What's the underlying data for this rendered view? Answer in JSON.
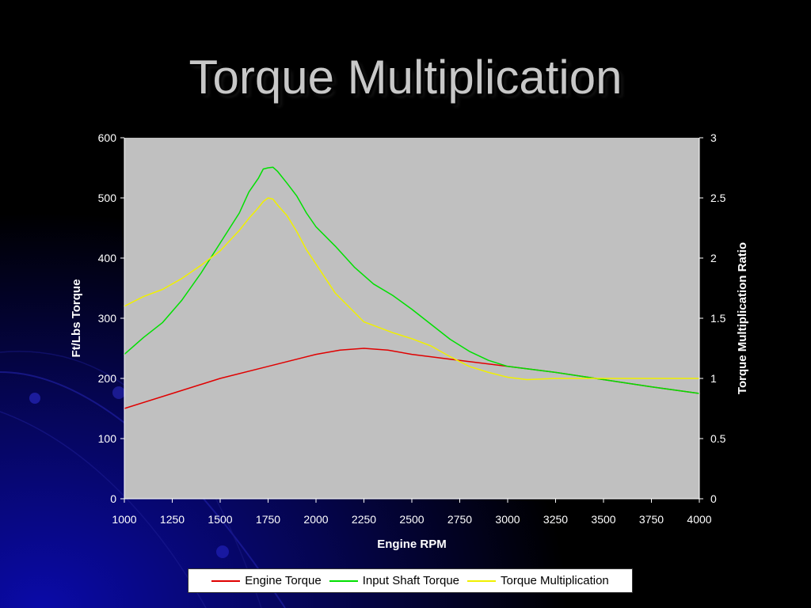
{
  "slide": {
    "title": "Torque Multiplication"
  },
  "chart_data": {
    "type": "line",
    "title": "",
    "xlabel": "Engine RPM",
    "ylabel": "Ft/Lbs Torque",
    "y2label": "Torque Multiplication Ratio",
    "xlim": [
      1000,
      4000
    ],
    "ylim": [
      0,
      600
    ],
    "y2lim": [
      0,
      3
    ],
    "x_ticks": [
      "1000",
      "1250",
      "1500",
      "1750",
      "2000",
      "2250",
      "2500",
      "2750",
      "3000",
      "3250",
      "3500",
      "3750",
      "4000"
    ],
    "y_ticks": [
      "0",
      "100",
      "200",
      "300",
      "400",
      "500",
      "600"
    ],
    "y2_ticks": [
      "0",
      "0.5",
      "1",
      "1.5",
      "2",
      "2.5",
      "3"
    ],
    "plot_background": "#c0c0c0",
    "grid": false,
    "legend_position": "bottom",
    "series": [
      {
        "name": "Engine Torque",
        "color": "#e00000",
        "axis": "left",
        "x": [
          1000,
          1250,
          1500,
          1750,
          2000,
          2125,
          2250,
          2375,
          2500,
          2750,
          3000,
          3250,
          3500,
          3750,
          4000
        ],
        "values": [
          150,
          175,
          200,
          220,
          240,
          247,
          250,
          247,
          240,
          230,
          220,
          210,
          198,
          186,
          175
        ]
      },
      {
        "name": "Input Shaft Torque",
        "color": "#00e000",
        "axis": "left",
        "x": [
          1000,
          1100,
          1200,
          1300,
          1400,
          1500,
          1600,
          1650,
          1700,
          1725,
          1750,
          1775,
          1800,
          1850,
          1900,
          1950,
          2000,
          2100,
          2200,
          2300,
          2400,
          2500,
          2600,
          2700,
          2800,
          2900,
          3000,
          3250,
          3500,
          3750,
          4000
        ],
        "values": [
          240,
          268,
          293,
          330,
          375,
          425,
          475,
          510,
          533,
          548,
          550,
          551,
          544,
          524,
          503,
          475,
          452,
          420,
          385,
          357,
          338,
          315,
          290,
          265,
          245,
          230,
          220,
          210,
          198,
          186,
          175
        ]
      },
      {
        "name": "Torque Multiplication",
        "color": "#f0f000",
        "axis": "right",
        "x": [
          1000,
          1100,
          1200,
          1300,
          1400,
          1500,
          1600,
          1650,
          1700,
          1725,
          1750,
          1775,
          1800,
          1850,
          1900,
          1950,
          2000,
          2100,
          2200,
          2250,
          2300,
          2400,
          2500,
          2600,
          2700,
          2800,
          2900,
          3000,
          3100,
          3250,
          3500,
          3750,
          4000
        ],
        "values": [
          1.6,
          1.68,
          1.74,
          1.83,
          1.94,
          2.06,
          2.23,
          2.33,
          2.42,
          2.47,
          2.5,
          2.49,
          2.44,
          2.35,
          2.22,
          2.07,
          1.95,
          1.71,
          1.55,
          1.47,
          1.44,
          1.38,
          1.33,
          1.27,
          1.18,
          1.1,
          1.05,
          1.01,
          0.99,
          1.0,
          1.0,
          1.0,
          1.0
        ]
      }
    ]
  }
}
